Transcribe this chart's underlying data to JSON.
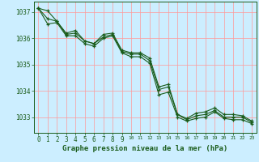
{
  "bg_color": "#cceeff",
  "plot_bg_color": "#cceeff",
  "grid_color": "#ff9999",
  "line_color": "#1a5c1a",
  "marker_color": "#1a5c1a",
  "axis_color": "#1a5c1a",
  "xlabel": "Graphe pression niveau de la mer (hPa)",
  "xlabel_fontsize": 6.5,
  "tick_fontsize": 6.0,
  "ylim": [
    1032.4,
    1037.4
  ],
  "xlim": [
    -0.5,
    23.5
  ],
  "yticks": [
    1033,
    1034,
    1035,
    1036,
    1037
  ],
  "xticks": [
    0,
    1,
    2,
    3,
    4,
    5,
    6,
    7,
    8,
    9,
    10,
    11,
    12,
    13,
    14,
    15,
    16,
    17,
    18,
    19,
    20,
    21,
    22,
    23
  ],
  "series": [
    [
      1037.15,
      1037.05,
      1036.65,
      1036.2,
      1036.3,
      1035.9,
      1035.8,
      1036.15,
      1036.2,
      1035.55,
      1035.45,
      1035.45,
      1035.25,
      1034.15,
      1034.25,
      1033.1,
      1032.95,
      1033.15,
      1033.2,
      1033.35,
      1033.1,
      1033.1,
      1033.05,
      1032.85
    ],
    [
      1037.15,
      1036.75,
      1036.65,
      1036.15,
      1036.2,
      1035.9,
      1035.8,
      1036.05,
      1036.15,
      1035.5,
      1035.4,
      1035.4,
      1035.15,
      1034.05,
      1034.15,
      1033.1,
      1032.9,
      1033.05,
      1033.1,
      1033.25,
      1033.0,
      1033.0,
      1033.0,
      1032.8
    ],
    [
      1037.15,
      1036.55,
      1036.6,
      1036.1,
      1036.1,
      1035.8,
      1035.7,
      1036.0,
      1036.1,
      1035.45,
      1035.3,
      1035.3,
      1035.05,
      1033.85,
      1033.95,
      1033.0,
      1032.85,
      1032.95,
      1033.0,
      1033.2,
      1032.95,
      1032.9,
      1032.9,
      1032.75
    ]
  ]
}
